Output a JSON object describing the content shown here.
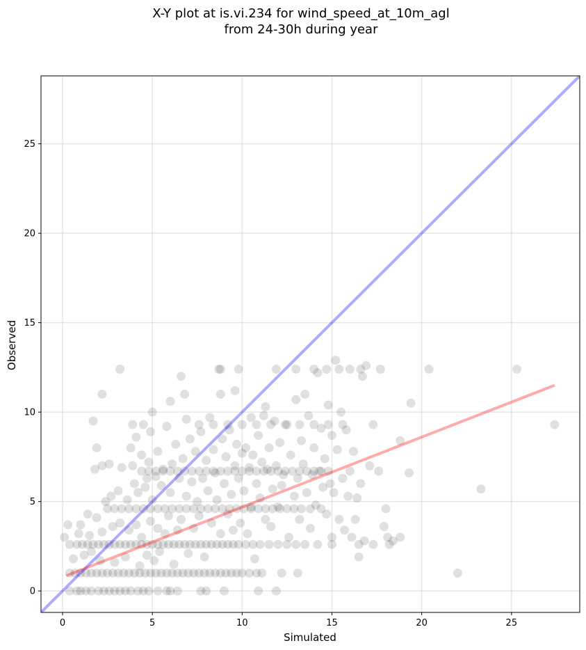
{
  "chart_data": {
    "type": "scatter",
    "title_line1": "X-Y plot at is.vi.234 for wind_speed_at_10m_agl",
    "title_line2": "from 24-30h during year",
    "xlabel": "Simulated",
    "ylabel": "Observed",
    "xlim": [
      -1.2,
      28.8
    ],
    "ylim": [
      -1.2,
      28.8
    ],
    "xticks": [
      0,
      5,
      10,
      15,
      20,
      25
    ],
    "yticks": [
      0,
      5,
      10,
      15,
      20,
      25
    ],
    "grid": true,
    "colors": {
      "points": "#000000",
      "identity_line": "#0000ff",
      "fit_line": "#ff0000"
    },
    "identity_line": {
      "x": [
        -1.2,
        28.8
      ],
      "y": [
        -1.2,
        28.8
      ]
    },
    "fit_line": {
      "x": [
        0.2,
        27.4
      ],
      "y": [
        0.85,
        11.5
      ]
    },
    "points": [
      [
        0.4,
        0
      ],
      [
        0.8,
        0
      ],
      [
        1.0,
        0
      ],
      [
        1.3,
        0
      ],
      [
        1.6,
        0
      ],
      [
        2.0,
        0
      ],
      [
        2.3,
        0
      ],
      [
        2.6,
        0
      ],
      [
        2.9,
        0
      ],
      [
        3.2,
        0
      ],
      [
        3.5,
        0
      ],
      [
        3.8,
        0
      ],
      [
        4.2,
        0
      ],
      [
        4.5,
        0
      ],
      [
        4.8,
        0
      ],
      [
        5.3,
        0
      ],
      [
        5.8,
        0
      ],
      [
        6.0,
        0
      ],
      [
        6.4,
        0
      ],
      [
        7.7,
        0
      ],
      [
        8.0,
        0
      ],
      [
        9.0,
        0
      ],
      [
        11.9,
        0
      ],
      [
        10.9,
        0
      ],
      [
        0.4,
        1
      ],
      [
        0.7,
        1
      ],
      [
        1.0,
        1
      ],
      [
        1.3,
        1
      ],
      [
        1.6,
        1
      ],
      [
        1.9,
        1
      ],
      [
        2.2,
        1
      ],
      [
        2.5,
        1
      ],
      [
        2.8,
        1
      ],
      [
        3.1,
        1
      ],
      [
        3.4,
        1
      ],
      [
        3.7,
        1
      ],
      [
        4.0,
        1
      ],
      [
        4.3,
        1
      ],
      [
        4.6,
        1
      ],
      [
        4.9,
        1
      ],
      [
        5.2,
        1
      ],
      [
        5.5,
        1
      ],
      [
        5.8,
        1
      ],
      [
        6.1,
        1
      ],
      [
        6.4,
        1
      ],
      [
        6.7,
        1
      ],
      [
        7.0,
        1
      ],
      [
        7.3,
        1
      ],
      [
        7.6,
        1
      ],
      [
        7.9,
        1
      ],
      [
        8.2,
        1
      ],
      [
        8.5,
        1
      ],
      [
        8.8,
        1
      ],
      [
        9.1,
        1
      ],
      [
        9.4,
        1
      ],
      [
        9.7,
        1
      ],
      [
        10.0,
        1
      ],
      [
        10.4,
        1
      ],
      [
        10.8,
        1
      ],
      [
        11.1,
        1
      ],
      [
        12.2,
        1
      ],
      [
        13.1,
        1
      ],
      [
        22.0,
        1
      ],
      [
        0.4,
        2.6
      ],
      [
        0.8,
        2.6
      ],
      [
        1.1,
        2.6
      ],
      [
        1.4,
        2.6
      ],
      [
        1.7,
        2.6
      ],
      [
        2.0,
        2.6
      ],
      [
        2.3,
        2.6
      ],
      [
        2.6,
        2.6
      ],
      [
        2.9,
        2.6
      ],
      [
        3.2,
        2.6
      ],
      [
        3.5,
        2.6
      ],
      [
        3.8,
        2.6
      ],
      [
        4.1,
        2.6
      ],
      [
        4.4,
        2.6
      ],
      [
        4.7,
        2.6
      ],
      [
        5.0,
        2.6
      ],
      [
        5.3,
        2.6
      ],
      [
        5.6,
        2.6
      ],
      [
        5.9,
        2.6
      ],
      [
        6.2,
        2.6
      ],
      [
        6.5,
        2.6
      ],
      [
        6.8,
        2.6
      ],
      [
        7.1,
        2.6
      ],
      [
        7.4,
        2.6
      ],
      [
        7.7,
        2.6
      ],
      [
        8.0,
        2.6
      ],
      [
        8.3,
        2.6
      ],
      [
        8.6,
        2.6
      ],
      [
        8.9,
        2.6
      ],
      [
        9.2,
        2.6
      ],
      [
        9.5,
        2.6
      ],
      [
        9.8,
        2.6
      ],
      [
        10.2,
        2.6
      ],
      [
        10.6,
        2.6
      ],
      [
        11.0,
        2.6
      ],
      [
        11.5,
        2.6
      ],
      [
        12.0,
        2.6
      ],
      [
        12.5,
        2.6
      ],
      [
        13.0,
        2.6
      ],
      [
        13.5,
        2.6
      ],
      [
        14.2,
        2.6
      ],
      [
        15.0,
        2.6
      ],
      [
        16.5,
        2.6
      ],
      [
        17.3,
        2.6
      ],
      [
        18.2,
        2.6
      ],
      [
        2.5,
        4.6
      ],
      [
        2.9,
        4.6
      ],
      [
        3.3,
        4.6
      ],
      [
        3.7,
        4.6
      ],
      [
        4.1,
        4.6
      ],
      [
        4.5,
        4.6
      ],
      [
        4.9,
        4.6
      ],
      [
        5.3,
        4.6
      ],
      [
        5.7,
        4.6
      ],
      [
        6.1,
        4.6
      ],
      [
        6.5,
        4.6
      ],
      [
        6.9,
        4.6
      ],
      [
        7.3,
        4.6
      ],
      [
        7.7,
        4.6
      ],
      [
        8.1,
        4.6
      ],
      [
        8.5,
        4.6
      ],
      [
        8.9,
        4.6
      ],
      [
        9.3,
        4.6
      ],
      [
        9.7,
        4.6
      ],
      [
        10.1,
        4.6
      ],
      [
        10.5,
        4.6
      ],
      [
        10.9,
        4.6
      ],
      [
        11.3,
        4.6
      ],
      [
        11.7,
        4.6
      ],
      [
        12.1,
        4.6
      ],
      [
        12.5,
        4.6
      ],
      [
        12.9,
        4.6
      ],
      [
        13.3,
        4.6
      ],
      [
        13.8,
        4.6
      ],
      [
        14.4,
        4.6
      ],
      [
        4.4,
        6.7
      ],
      [
        4.8,
        6.7
      ],
      [
        5.2,
        6.7
      ],
      [
        5.6,
        6.7
      ],
      [
        6.0,
        6.7
      ],
      [
        6.4,
        6.7
      ],
      [
        6.8,
        6.7
      ],
      [
        7.2,
        6.7
      ],
      [
        7.6,
        6.7
      ],
      [
        8.0,
        6.7
      ],
      [
        8.4,
        6.7
      ],
      [
        8.8,
        6.7
      ],
      [
        9.2,
        6.7
      ],
      [
        9.6,
        6.7
      ],
      [
        10.0,
        6.7
      ],
      [
        10.4,
        6.7
      ],
      [
        10.8,
        6.7
      ],
      [
        11.2,
        6.7
      ],
      [
        11.6,
        6.7
      ],
      [
        12.0,
        6.7
      ],
      [
        12.4,
        6.7
      ],
      [
        12.8,
        6.7
      ],
      [
        13.2,
        6.7
      ],
      [
        13.6,
        6.7
      ],
      [
        14.0,
        6.7
      ],
      [
        14.4,
        6.7
      ],
      [
        14.8,
        6.7
      ],
      [
        7.6,
        9.3
      ],
      [
        8.4,
        9.3
      ],
      [
        9.2,
        9.3
      ],
      [
        10.0,
        9.3
      ],
      [
        10.8,
        9.3
      ],
      [
        11.6,
        9.3
      ],
      [
        12.4,
        9.3
      ],
      [
        13.2,
        9.3
      ],
      [
        14.0,
        9.3
      ],
      [
        14.8,
        9.3
      ],
      [
        15.6,
        9.3
      ],
      [
        3.2,
        12.4
      ],
      [
        8.8,
        12.4
      ],
      [
        9.8,
        12.4
      ],
      [
        11.9,
        12.4
      ],
      [
        13.0,
        12.4
      ],
      [
        14.0,
        12.4
      ],
      [
        14.7,
        12.4
      ],
      [
        15.4,
        12.4
      ],
      [
        16.0,
        12.4
      ],
      [
        16.6,
        12.4
      ],
      [
        17.7,
        12.4
      ],
      [
        20.4,
        12.4
      ],
      [
        25.3,
        12.4
      ],
      [
        0.1,
        3.0
      ],
      [
        0.3,
        3.7
      ],
      [
        0.6,
        1.8
      ],
      [
        0.9,
        3.2
      ],
      [
        1.0,
        3.7
      ],
      [
        1.2,
        2.0
      ],
      [
        1.4,
        4.3
      ],
      [
        1.5,
        3.1
      ],
      [
        1.6,
        2.2
      ],
      [
        1.7,
        9.5
      ],
      [
        1.8,
        6.8
      ],
      [
        1.9,
        8.0
      ],
      [
        1.9,
        4.1
      ],
      [
        2.1,
        1.7
      ],
      [
        2.2,
        3.3
      ],
      [
        2.2,
        7.0
      ],
      [
        2.2,
        11.0
      ],
      [
        2.4,
        5.0
      ],
      [
        2.6,
        7.1
      ],
      [
        2.7,
        5.3
      ],
      [
        2.8,
        3.6
      ],
      [
        2.9,
        1.6
      ],
      [
        3.1,
        5.6
      ],
      [
        3.2,
        3.8
      ],
      [
        3.3,
        6.9
      ],
      [
        3.5,
        1.9
      ],
      [
        3.6,
        5.1
      ],
      [
        3.7,
        3.4
      ],
      [
        3.8,
        8.0
      ],
      [
        3.9,
        7.0
      ],
      [
        3.9,
        9.3
      ],
      [
        4.0,
        6.0
      ],
      [
        4.1,
        3.7
      ],
      [
        4.1,
        8.6
      ],
      [
        4.2,
        5.5
      ],
      [
        4.3,
        1.4
      ],
      [
        4.4,
        7.6
      ],
      [
        4.4,
        3.0
      ],
      [
        4.5,
        9.3
      ],
      [
        4.6,
        5.8
      ],
      [
        4.7,
        2.0
      ],
      [
        4.7,
        6.3
      ],
      [
        4.8,
        7.2
      ],
      [
        4.9,
        3.9
      ],
      [
        4.9,
        8.9
      ],
      [
        5.0,
        10.0
      ],
      [
        5.0,
        5.1
      ],
      [
        5.1,
        1.7
      ],
      [
        5.2,
        6.4
      ],
      [
        5.3,
        3.5
      ],
      [
        5.3,
        7.8
      ],
      [
        5.4,
        2.2
      ],
      [
        5.5,
        5.9
      ],
      [
        5.6,
        6.8
      ],
      [
        5.7,
        3.2
      ],
      [
        5.8,
        9.2
      ],
      [
        5.9,
        4.2
      ],
      [
        6.0,
        5.5
      ],
      [
        6.0,
        10.6
      ],
      [
        6.1,
        7.1
      ],
      [
        6.2,
        1.5
      ],
      [
        6.3,
        8.2
      ],
      [
        6.4,
        3.4
      ],
      [
        6.5,
        6.3
      ],
      [
        6.6,
        12.0
      ],
      [
        6.6,
        4.0
      ],
      [
        6.7,
        7.4
      ],
      [
        6.8,
        11.0
      ],
      [
        6.9,
        5.3
      ],
      [
        6.9,
        9.6
      ],
      [
        7.0,
        2.1
      ],
      [
        7.1,
        8.5
      ],
      [
        7.2,
        6.1
      ],
      [
        7.3,
        3.5
      ],
      [
        7.4,
        7.8
      ],
      [
        7.5,
        5.0
      ],
      [
        7.6,
        4.2
      ],
      [
        7.7,
        8.9
      ],
      [
        7.8,
        6.3
      ],
      [
        7.9,
        1.9
      ],
      [
        8.0,
        7.3
      ],
      [
        8.1,
        5.6
      ],
      [
        8.2,
        9.7
      ],
      [
        8.3,
        3.8
      ],
      [
        8.4,
        7.9
      ],
      [
        8.5,
        6.6
      ],
      [
        8.6,
        5.1
      ],
      [
        8.7,
        12.4
      ],
      [
        8.8,
        11.0
      ],
      [
        8.8,
        3.2
      ],
      [
        8.9,
        8.5
      ],
      [
        9.0,
        6.0
      ],
      [
        9.1,
        7.5
      ],
      [
        9.2,
        4.3
      ],
      [
        9.3,
        9.0
      ],
      [
        9.4,
        5.4
      ],
      [
        9.5,
        3.4
      ],
      [
        9.6,
        11.2
      ],
      [
        9.6,
        7.0
      ],
      [
        9.7,
        8.2
      ],
      [
        9.8,
        6.3
      ],
      [
        9.9,
        3.8
      ],
      [
        10.0,
        7.7
      ],
      [
        10.1,
        5.6
      ],
      [
        10.2,
        8.0
      ],
      [
        10.3,
        3.2
      ],
      [
        10.4,
        6.9
      ],
      [
        10.5,
        9.7
      ],
      [
        10.5,
        4.7
      ],
      [
        10.6,
        7.6
      ],
      [
        10.7,
        1.8
      ],
      [
        10.8,
        6.0
      ],
      [
        10.9,
        8.7
      ],
      [
        11.0,
        5.2
      ],
      [
        11.1,
        7.2
      ],
      [
        11.2,
        9.8
      ],
      [
        11.3,
        10.3
      ],
      [
        11.3,
        4.0
      ],
      [
        11.4,
        6.8
      ],
      [
        11.5,
        8.0
      ],
      [
        11.6,
        3.6
      ],
      [
        11.7,
        5.7
      ],
      [
        11.8,
        9.5
      ],
      [
        11.9,
        7.0
      ],
      [
        12.0,
        4.7
      ],
      [
        12.1,
        8.3
      ],
      [
        12.2,
        5.9
      ],
      [
        12.3,
        6.5
      ],
      [
        12.5,
        9.3
      ],
      [
        12.6,
        3.0
      ],
      [
        12.7,
        7.6
      ],
      [
        12.9,
        5.3
      ],
      [
        13.0,
        10.7
      ],
      [
        13.1,
        6.3
      ],
      [
        13.2,
        4.0
      ],
      [
        13.3,
        8.4
      ],
      [
        13.4,
        7.1
      ],
      [
        13.5,
        11.0
      ],
      [
        13.6,
        5.5
      ],
      [
        13.7,
        9.8
      ],
      [
        13.8,
        3.5
      ],
      [
        13.9,
        6.5
      ],
      [
        14.0,
        8.0
      ],
      [
        14.1,
        4.8
      ],
      [
        14.2,
        12.2
      ],
      [
        14.3,
        6.7
      ],
      [
        14.4,
        9.1
      ],
      [
        14.5,
        5.8
      ],
      [
        14.6,
        7.4
      ],
      [
        14.7,
        4.3
      ],
      [
        14.8,
        10.4
      ],
      [
        14.9,
        6.0
      ],
      [
        15.0,
        3.0
      ],
      [
        15.0,
        8.7
      ],
      [
        15.1,
        5.5
      ],
      [
        15.2,
        12.9
      ],
      [
        15.3,
        7.9
      ],
      [
        15.4,
        4.0
      ],
      [
        15.5,
        10.0
      ],
      [
        15.6,
        6.3
      ],
      [
        15.7,
        3.4
      ],
      [
        15.8,
        9.0
      ],
      [
        15.9,
        5.3
      ],
      [
        16.0,
        6.7
      ],
      [
        16.1,
        3.0
      ],
      [
        16.2,
        7.8
      ],
      [
        16.3,
        4.0
      ],
      [
        16.4,
        5.2
      ],
      [
        16.5,
        1.9
      ],
      [
        16.6,
        6.0
      ],
      [
        16.7,
        12.0
      ],
      [
        16.8,
        2.8
      ],
      [
        16.9,
        12.6
      ],
      [
        17.1,
        7.0
      ],
      [
        17.3,
        9.3
      ],
      [
        17.6,
        6.7
      ],
      [
        17.9,
        3.6
      ],
      [
        18.0,
        4.6
      ],
      [
        18.1,
        3.0
      ],
      [
        18.4,
        2.8
      ],
      [
        18.8,
        8.4
      ],
      [
        18.8,
        3.0
      ],
      [
        19.3,
        6.6
      ],
      [
        19.4,
        10.5
      ],
      [
        23.3,
        5.7
      ],
      [
        27.4,
        9.3
      ]
    ]
  }
}
